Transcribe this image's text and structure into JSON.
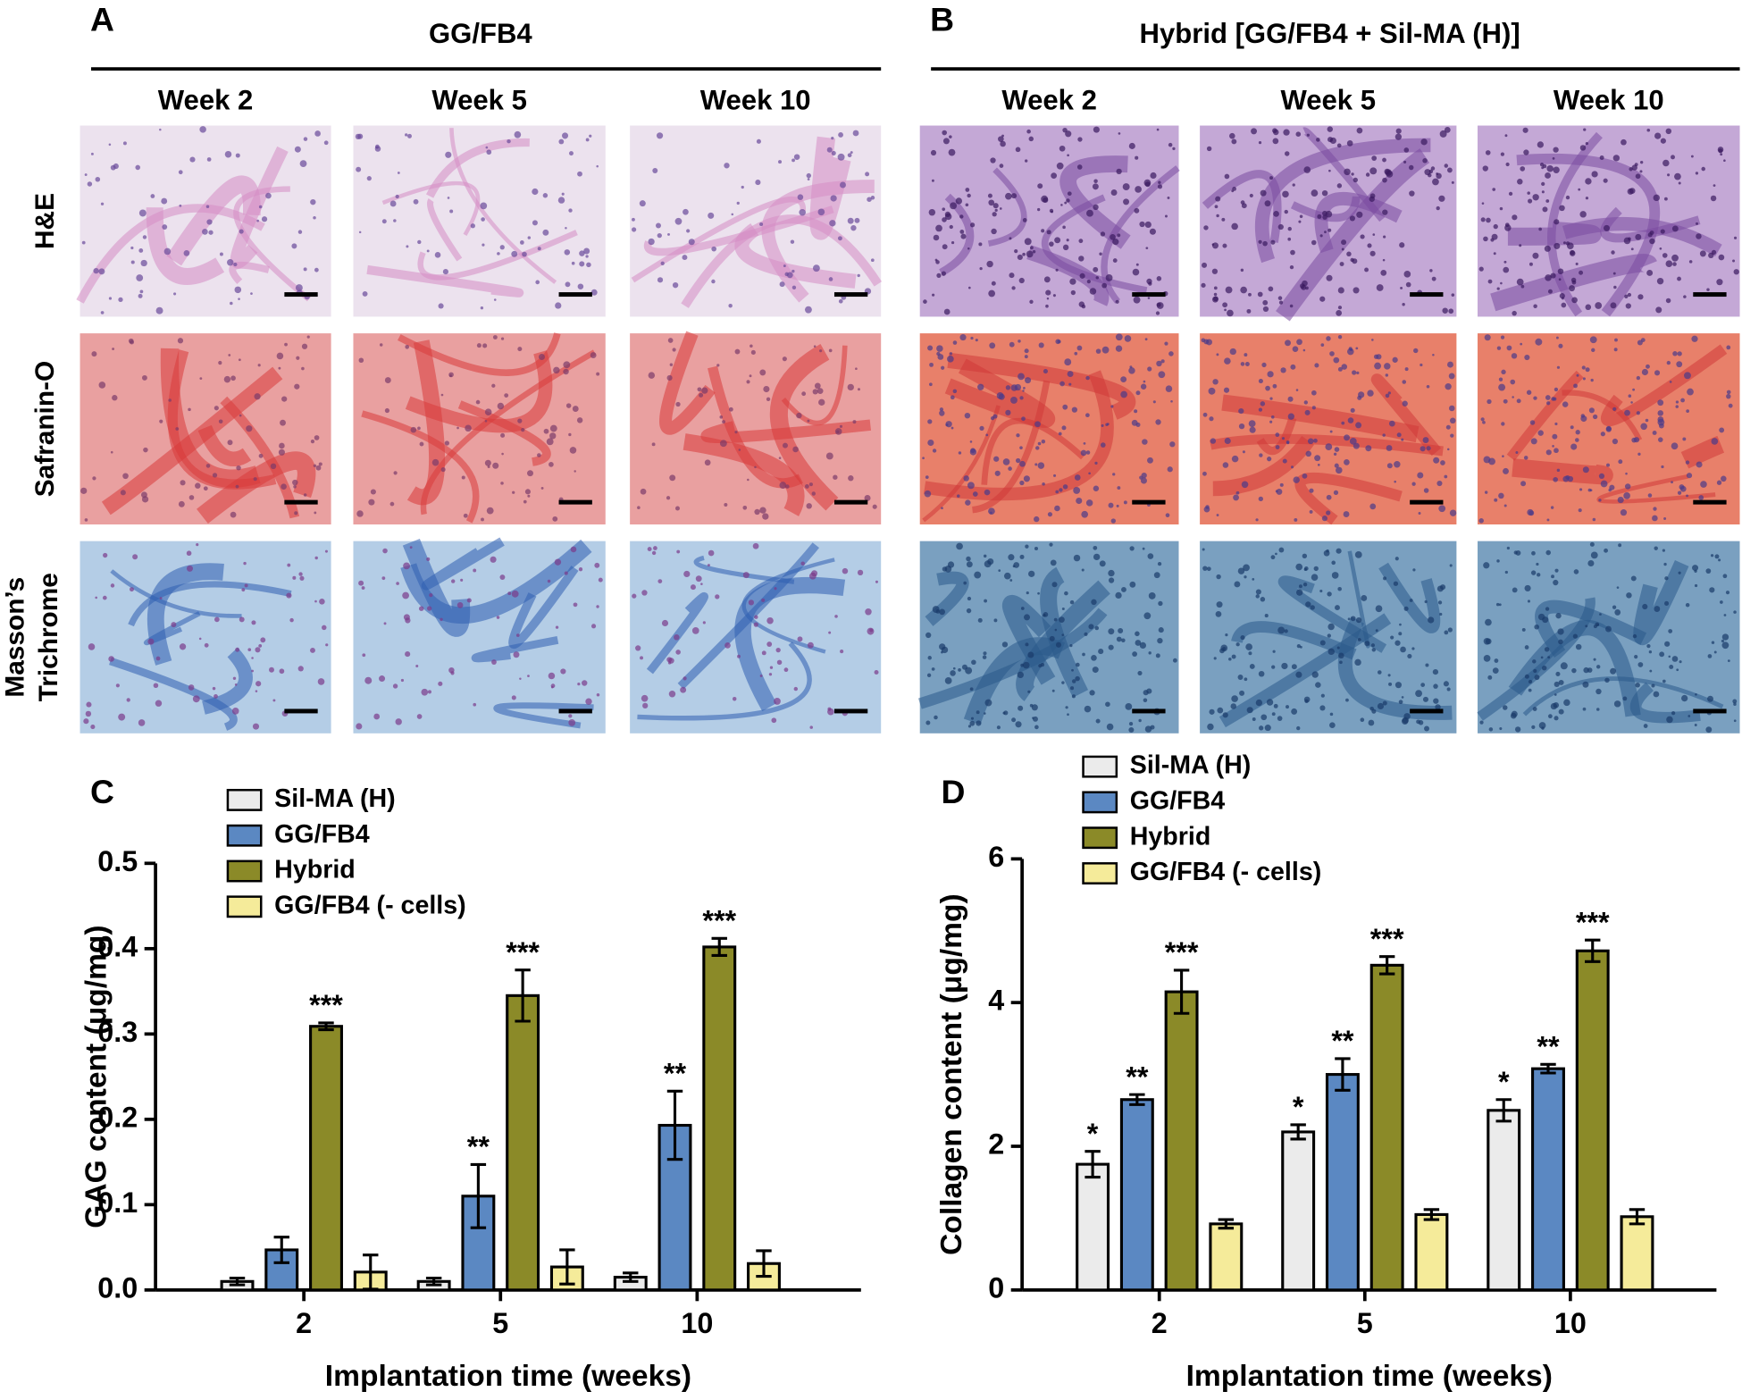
{
  "histology": {
    "panels": [
      {
        "label": "A",
        "title": "GG/FB4",
        "weeks": [
          "Week 2",
          "Week 5",
          "Week 10"
        ]
      },
      {
        "label": "B",
        "title": "Hybrid [GG/FB4 + Sil-MA (H)]",
        "weeks": [
          "Week 2",
          "Week 5",
          "Week 10"
        ]
      }
    ],
    "rows": [
      [
        "H&E"
      ],
      [
        "Safranin-O"
      ],
      [
        "Masson’s",
        "Trichrome"
      ]
    ]
  },
  "chart_data": [
    {
      "type": "bar",
      "panel": "C",
      "y_label": "GAG content (μg/mg)",
      "x_label": "Implantation time (weeks)",
      "categories": [
        "2",
        "5",
        "10"
      ],
      "ylim": [
        0,
        0.5
      ],
      "yticks": [
        {
          "value": 0,
          "label": "0.0"
        },
        0.1,
        0.2,
        0.3,
        0.4,
        0.5
      ],
      "series": [
        {
          "name": "Sil-MA (H)",
          "color": "#ebebeb",
          "values": [
            0.01,
            0.01,
            0.015
          ],
          "errors": [
            0.004,
            0.004,
            0.005
          ],
          "labels": [
            null,
            null,
            null
          ]
        },
        {
          "name": "GG/FB4",
          "color": "#5b88c2",
          "values": [
            0.047,
            0.11,
            0.193
          ],
          "errors": [
            0.015,
            0.037,
            0.04
          ],
          "labels": [
            null,
            "**",
            "**"
          ]
        },
        {
          "name": "Hybrid",
          "color": "#8b8a28",
          "values": [
            0.309,
            0.345,
            0.402
          ],
          "errors": [
            0.004,
            0.03,
            0.01
          ],
          "labels": [
            "***",
            "***",
            "***"
          ]
        },
        {
          "name": "GG/FB4 (- cells)",
          "color": "#f5eb9a",
          "values": [
            0.021,
            0.027,
            0.031
          ],
          "errors": [
            0.02,
            0.02,
            0.015
          ],
          "labels": [
            null,
            null,
            null
          ]
        }
      ]
    },
    {
      "type": "bar",
      "panel": "D",
      "y_label": "Collagen content (μg/mg)",
      "x_label": "Implantation time (weeks)",
      "categories": [
        "2",
        "5",
        "10"
      ],
      "ylim": [
        0,
        6
      ],
      "yticks": [
        0,
        2,
        4,
        6
      ],
      "series": [
        {
          "name": "Sil-MA (H)",
          "color": "#ebebeb",
          "values": [
            1.75,
            2.2,
            2.5
          ],
          "errors": [
            0.18,
            0.1,
            0.15
          ],
          "labels": [
            "*",
            "*",
            "*"
          ]
        },
        {
          "name": "GG/FB4",
          "color": "#5b88c2",
          "values": [
            2.65,
            3.0,
            3.08
          ],
          "errors": [
            0.07,
            0.22,
            0.06
          ],
          "labels": [
            "**",
            "**",
            "**"
          ]
        },
        {
          "name": "Hybrid",
          "color": "#8b8a28",
          "values": [
            4.15,
            4.52,
            4.72
          ],
          "errors": [
            0.3,
            0.12,
            0.15
          ],
          "labels": [
            "***",
            "***",
            "***"
          ]
        },
        {
          "name": "GG/FB4 (- cells)",
          "color": "#f5eb9a",
          "values": [
            0.92,
            1.05,
            1.02
          ],
          "errors": [
            0.06,
            0.07,
            0.1
          ],
          "labels": [
            null,
            null,
            null
          ]
        }
      ]
    }
  ]
}
